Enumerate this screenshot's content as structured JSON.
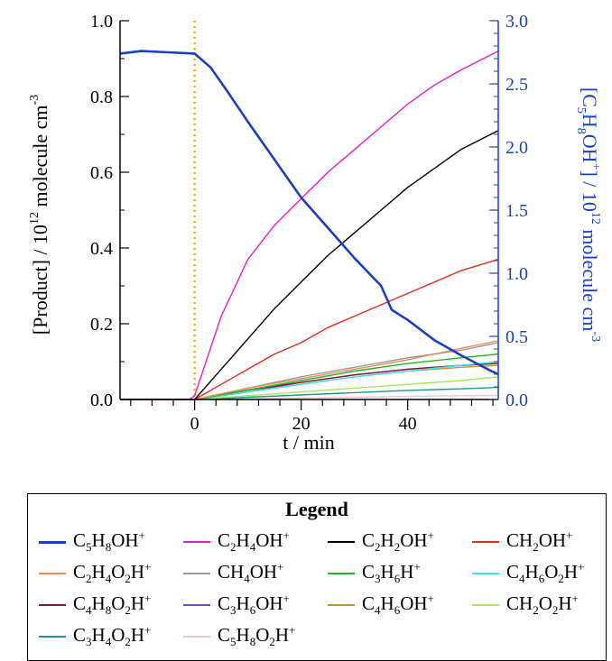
{
  "chart_data": {
    "type": "line",
    "xlabel": "t / min",
    "ylabel_left": "[Product] / 10^12 molecule cm^-3",
    "ylabel_right": "[C5H8OH+] / 10^12 molecule cm^-3",
    "xlim": [
      -14,
      57
    ],
    "ylim_left": [
      0,
      1.0
    ],
    "ylim_right": [
      0,
      3.0
    ],
    "x_ticks": [
      "0",
      "20",
      "40"
    ],
    "y_left_ticks": [
      "0.0",
      "0.2",
      "0.4",
      "0.6",
      "0.8",
      "1.0"
    ],
    "y_right_ticks": [
      "0.0",
      "0.5",
      "1.0",
      "1.5",
      "2.0",
      "2.5",
      "3.0"
    ],
    "start_marker_x": 0,
    "legend_title": "Legend",
    "axis_color_right": "#1a3fbf",
    "series": [
      {
        "name": "C5H8OH+",
        "axis": "right",
        "color": "#1a3fbf",
        "x": [
          -14,
          -10,
          -5,
          0,
          3,
          6,
          10,
          15,
          20,
          25,
          30,
          35,
          37,
          40,
          45,
          50,
          55,
          57
        ],
        "y": [
          2.74,
          2.76,
          2.75,
          2.74,
          2.63,
          2.45,
          2.2,
          1.9,
          1.6,
          1.36,
          1.12,
          0.9,
          0.71,
          0.63,
          0.47,
          0.35,
          0.24,
          0.2
        ]
      },
      {
        "name": "C2H4OH+",
        "axis": "left",
        "color": "#e81bc8",
        "x": [
          -14,
          -1,
          0,
          5,
          10,
          15,
          20,
          25,
          30,
          35,
          40,
          45,
          50,
          57
        ],
        "y": [
          0.0,
          0.0,
          0.01,
          0.22,
          0.37,
          0.46,
          0.53,
          0.6,
          0.66,
          0.72,
          0.78,
          0.83,
          0.87,
          0.92
        ]
      },
      {
        "name": "C2H2OH+",
        "axis": "left",
        "color": "#000000",
        "x": [
          -14,
          0,
          5,
          10,
          15,
          20,
          25,
          30,
          35,
          40,
          45,
          50,
          57
        ],
        "y": [
          0.0,
          0.0,
          0.08,
          0.16,
          0.24,
          0.31,
          0.38,
          0.44,
          0.5,
          0.56,
          0.61,
          0.66,
          0.71
        ]
      },
      {
        "name": "CH2OH+",
        "axis": "left",
        "color": "#e82a1e",
        "x": [
          -14,
          0,
          5,
          10,
          15,
          20,
          25,
          30,
          35,
          40,
          45,
          50,
          57
        ],
        "y": [
          0.0,
          0.0,
          0.04,
          0.08,
          0.12,
          0.15,
          0.19,
          0.22,
          0.25,
          0.28,
          0.31,
          0.34,
          0.37
        ]
      },
      {
        "name": "C2H4O2H+",
        "axis": "left",
        "color": "#ee8a5a",
        "x": [
          -14,
          0,
          10,
          20,
          30,
          40,
          50,
          57
        ],
        "y": [
          0.0,
          0.0,
          0.03,
          0.055,
          0.08,
          0.105,
          0.135,
          0.155
        ]
      },
      {
        "name": "CH4OH+",
        "axis": "left",
        "color": "#9a9a9a",
        "x": [
          -14,
          0,
          10,
          20,
          30,
          40,
          50,
          57
        ],
        "y": [
          0.0,
          0.0,
          0.03,
          0.06,
          0.085,
          0.11,
          0.13,
          0.15
        ]
      },
      {
        "name": "C3H6H+",
        "axis": "left",
        "color": "#22b322",
        "x": [
          -14,
          0,
          10,
          20,
          30,
          40,
          50,
          57
        ],
        "y": [
          0.0,
          0.0,
          0.025,
          0.05,
          0.075,
          0.095,
          0.11,
          0.12
        ]
      },
      {
        "name": "C4H6O2H+",
        "axis": "left",
        "color": "#33e6f0",
        "x": [
          -14,
          0,
          10,
          20,
          30,
          40,
          50,
          57
        ],
        "y": [
          0.0,
          0.0,
          0.02,
          0.04,
          0.06,
          0.075,
          0.09,
          0.1
        ]
      },
      {
        "name": "C4H8O2H+",
        "axis": "left",
        "color": "#8b1a2e",
        "x": [
          -14,
          0,
          10,
          20,
          30,
          40,
          50,
          57
        ],
        "y": [
          0.0,
          0.0,
          0.025,
          0.045,
          0.065,
          0.08,
          0.09,
          0.095
        ]
      },
      {
        "name": "C3H6OH+",
        "axis": "left",
        "color": "#8a3fc9",
        "x": [
          -14,
          0,
          10,
          20,
          30,
          40,
          50,
          57
        ],
        "y": [
          0.0,
          0.0,
          0.02,
          0.045,
          0.065,
          0.08,
          0.09,
          0.095
        ]
      },
      {
        "name": "C4H6OH+",
        "axis": "left",
        "color": "#c8951e",
        "x": [
          -14,
          0,
          10,
          20,
          30,
          40,
          50,
          57
        ],
        "y": [
          0.0,
          0.0,
          0.02,
          0.04,
          0.06,
          0.075,
          0.085,
          0.09
        ]
      },
      {
        "name": "CH2O2H+",
        "axis": "left",
        "color": "#a8e65a",
        "x": [
          -14,
          0,
          10,
          20,
          30,
          40,
          50,
          57
        ],
        "y": [
          0.0,
          0.0,
          0.01,
          0.02,
          0.03,
          0.04,
          0.05,
          0.06
        ]
      },
      {
        "name": "C3H4O2H+",
        "axis": "left",
        "color": "#1a9a8a",
        "x": [
          -14,
          0,
          10,
          20,
          30,
          40,
          50,
          57
        ],
        "y": [
          0.0,
          0.0,
          0.006,
          0.012,
          0.018,
          0.024,
          0.028,
          0.032
        ]
      },
      {
        "name": "C5H8O2H+",
        "axis": "left",
        "color": "#f2c0d8",
        "x": [
          -14,
          0,
          10,
          20,
          30,
          40,
          50,
          57
        ],
        "y": [
          0.0,
          0.0,
          0.002,
          0.004,
          0.006,
          0.008,
          0.01,
          0.011
        ]
      }
    ]
  },
  "legend": {
    "items": [
      {
        "base": "C<sub>5</sub>H<sub>8</sub>OH<sup>+</sup>"
      },
      {
        "base": "C<sub>2</sub>H<sub>4</sub>OH<sup>+</sup>"
      },
      {
        "base": "C<sub>2</sub>H<sub>2</sub>OH<sup>+</sup>"
      },
      {
        "base": "CH<sub>2</sub>OH<sup>+</sup>"
      },
      {
        "base": "C<sub>2</sub>H<sub>4</sub>O<sub>2</sub>H<sup>+</sup>"
      },
      {
        "base": "CH<sub>4</sub>OH<sup>+</sup>"
      },
      {
        "base": "C<sub>3</sub>H<sub>6</sub>H<sup>+</sup>"
      },
      {
        "base": "C<sub>4</sub>H<sub>6</sub>O<sub>2</sub>H<sup>+</sup>"
      },
      {
        "base": "C<sub>4</sub>H<sub>8</sub>O<sub>2</sub>H<sup>+</sup>"
      },
      {
        "base": "C<sub>3</sub>H<sub>6</sub>OH<sup>+</sup>"
      },
      {
        "base": "C<sub>4</sub>H<sub>6</sub>OH<sup>+</sup>"
      },
      {
        "base": "CH<sub>2</sub>O<sub>2</sub>H<sup>+</sup>"
      },
      {
        "base": "C<sub>3</sub>H<sub>4</sub>O<sub>2</sub>H<sup>+</sup>"
      },
      {
        "base": "C<sub>5</sub>H<sub>8</sub>O<sub>2</sub>H<sup>+</sup>"
      }
    ]
  }
}
